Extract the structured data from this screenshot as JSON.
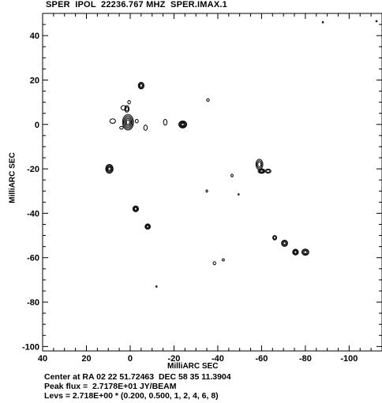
{
  "header": {
    "title": "SPER  IPOL  22236.767 MHZ  SPER.IMAX.1"
  },
  "footer": {
    "center": "Center at RA 02 22 51.72463  DEC 58 35 11.3904",
    "peak": "Peak flux =  2.7178E+01 JY/BEAM",
    "levs": "Levs = 2.718E+00 * (0.200, 0.500, 1, 2, 4, 6, 8)"
  },
  "chart_data": {
    "type": "contour",
    "xlabel": "MilliARC SEC",
    "ylabel": "MilliARC SEC",
    "xlim": [
      40,
      -115
    ],
    "ylim": [
      -102,
      50
    ],
    "xticks": [
      40,
      20,
      0,
      -20,
      -40,
      -60,
      -80,
      -100
    ],
    "xtick_labels": [
      "40",
      "20",
      "0",
      "-20",
      "-40",
      "-60",
      "-80",
      "-100"
    ],
    "yticks": [
      40,
      20,
      0,
      -20,
      -40,
      -60,
      -80,
      -100
    ],
    "ytick_labels": [
      "40",
      "20",
      "0",
      "-20",
      "-40",
      "-60",
      "-80",
      "-100"
    ],
    "components": [
      {
        "x": 1,
        "y": 1,
        "rings": 5,
        "rx": 2.5,
        "ry": 3.5
      },
      {
        "x": 1.5,
        "y": 7,
        "rings": 2,
        "rx": 1.0,
        "ry": 1.5
      },
      {
        "x": 3,
        "y": 7.5,
        "rings": 1,
        "rx": 1.2,
        "ry": 1.0
      },
      {
        "x": 0.5,
        "y": 10,
        "rings": 1,
        "rx": 0.6,
        "ry": 0.8
      },
      {
        "x": 8,
        "y": 1.5,
        "rings": 1,
        "rx": 1.3,
        "ry": 1.0
      },
      {
        "x": 4,
        "y": -1.5,
        "rings": 1,
        "rx": 0.8,
        "ry": 0.6
      },
      {
        "x": -3,
        "y": 1.5,
        "rings": 1,
        "rx": 0.7,
        "ry": 0.8
      },
      {
        "x": -5,
        "y": 17.5,
        "rings": 3,
        "rx": 1.3,
        "ry": 1.5
      },
      {
        "x": -7,
        "y": -1.5,
        "rings": 1,
        "rx": 0.8,
        "ry": 1.2
      },
      {
        "x": -16,
        "y": 1,
        "rings": 1,
        "rx": 0.8,
        "ry": 1.3
      },
      {
        "x": -24,
        "y": 0,
        "rings": 4,
        "rx": 1.8,
        "ry": 1.6
      },
      {
        "x": -35.5,
        "y": 11,
        "rings": 1,
        "rx": 0.6,
        "ry": 0.6
      },
      {
        "x": 9.5,
        "y": -20,
        "rings": 4,
        "rx": 1.7,
        "ry": 2.0
      },
      {
        "x": -2.5,
        "y": -38,
        "rings": 3,
        "rx": 1.3,
        "ry": 1.3
      },
      {
        "x": -8,
        "y": -46,
        "rings": 3,
        "rx": 1.2,
        "ry": 1.2
      },
      {
        "x": -46.5,
        "y": -23,
        "rings": 1,
        "rx": 0.5,
        "ry": 0.6
      },
      {
        "x": -35,
        "y": -30,
        "rings": 1,
        "rx": 0.4,
        "ry": 0.5
      },
      {
        "x": -59,
        "y": -18,
        "rings": 3,
        "rx": 1.6,
        "ry": 2.3
      },
      {
        "x": -60,
        "y": -21,
        "rings": 3,
        "rx": 1.6,
        "ry": 1.0
      },
      {
        "x": -63,
        "y": -21,
        "rings": 2,
        "rx": 1.3,
        "ry": 0.9
      },
      {
        "x": -66,
        "y": -51,
        "rings": 2,
        "rx": 0.9,
        "ry": 1.0
      },
      {
        "x": -70.5,
        "y": -53.5,
        "rings": 3,
        "rx": 1.4,
        "ry": 1.4
      },
      {
        "x": -75.5,
        "y": -57.5,
        "rings": 3,
        "rx": 1.3,
        "ry": 1.3
      },
      {
        "x": -80,
        "y": -57.5,
        "rings": 3,
        "rx": 1.6,
        "ry": 1.4
      },
      {
        "x": -38.5,
        "y": -62.5,
        "rings": 1,
        "rx": 0.6,
        "ry": 0.7
      },
      {
        "x": -42.5,
        "y": -61,
        "rings": 1,
        "rx": 0.5,
        "ry": 0.5
      },
      {
        "x": -12,
        "y": -73,
        "rings": 1,
        "rx": 0.3,
        "ry": 0.3
      },
      {
        "x": -88,
        "y": 46,
        "rings": 1,
        "rx": 0.3,
        "ry": 0.3
      },
      {
        "x": -112.5,
        "y": 46.5,
        "rings": 1,
        "rx": 0.3,
        "ry": 0.3
      },
      {
        "x": -49.5,
        "y": -31.5,
        "rings": 1,
        "rx": 0.2,
        "ry": 0.2
      }
    ]
  }
}
